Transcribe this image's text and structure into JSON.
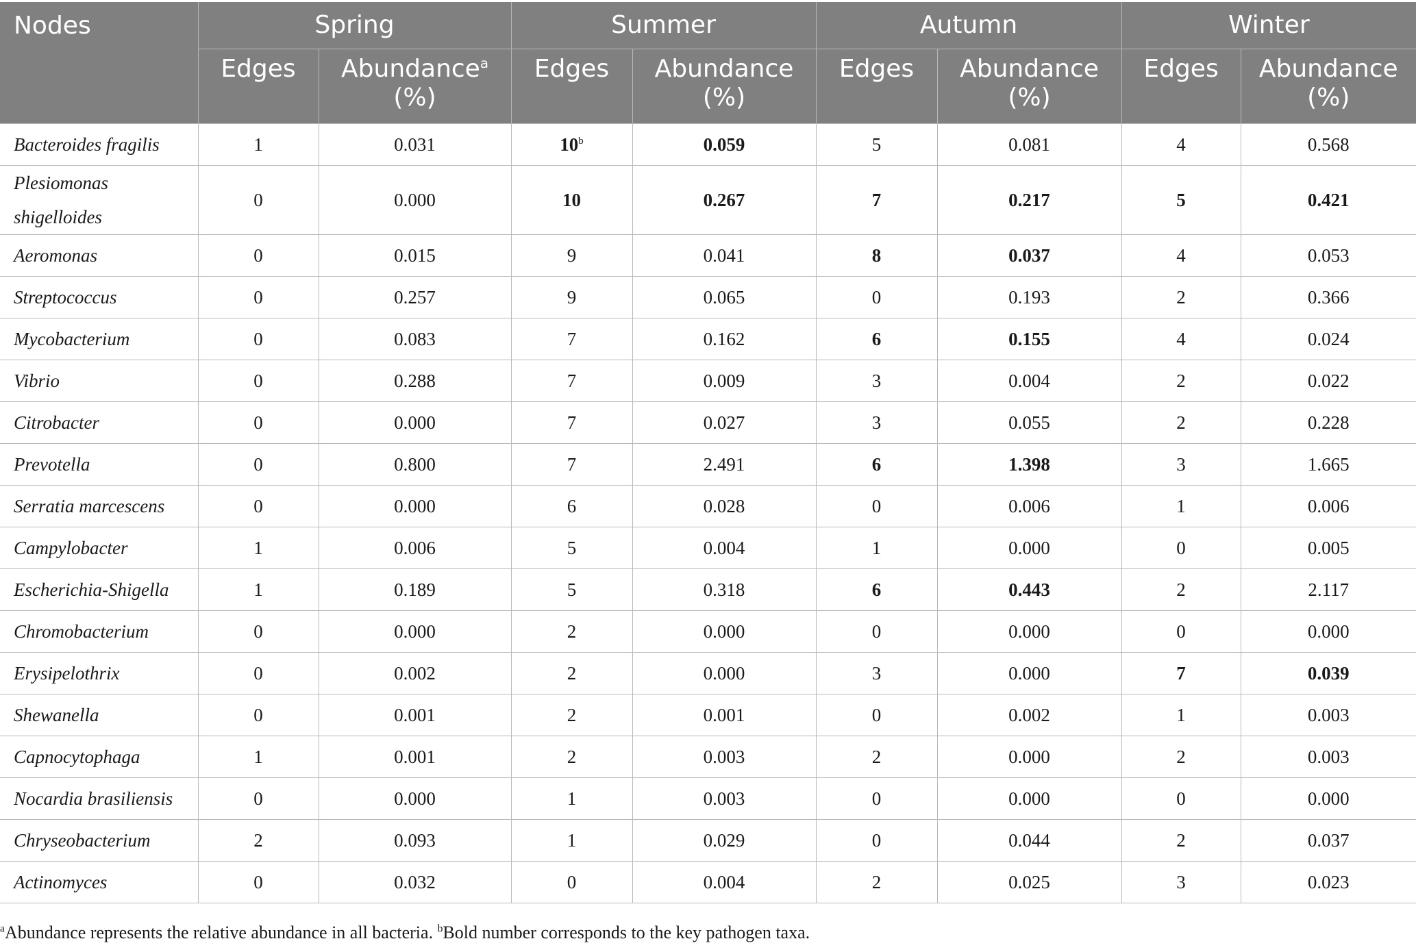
{
  "header": {
    "nodes": "Nodes",
    "seasons": [
      "Spring",
      "Summer",
      "Autumn",
      "Winter"
    ],
    "edges": "Edges",
    "abundance_line1": "Abundance",
    "abundance_sup": "a",
    "abundance_line2": "(%)"
  },
  "rows": [
    {
      "node": "Bacteroides fragilis",
      "spring_e": "1",
      "spring_a": "0.031",
      "summer_e": "10",
      "summer_e_sup": "b",
      "summer_a": "0.059",
      "autumn_e": "5",
      "autumn_a": "0.081",
      "winter_e": "4",
      "winter_a": "0.568"
    },
    {
      "node_l1": "Plesiomonas",
      "node_l2": "shigelloides",
      "spring_e": "0",
      "spring_a": "0.000",
      "summer_e": "10",
      "summer_a": "0.267",
      "autumn_e": "7",
      "autumn_a": "0.217",
      "winter_e": "5",
      "winter_a": "0.421"
    },
    {
      "node": "Aeromonas",
      "spring_e": "0",
      "spring_a": "0.015",
      "summer_e": "9",
      "summer_a": "0.041",
      "autumn_e": "8",
      "autumn_a": "0.037",
      "winter_e": "4",
      "winter_a": "0.053"
    },
    {
      "node": "Streptococcus",
      "spring_e": "0",
      "spring_a": "0.257",
      "summer_e": "9",
      "summer_a": "0.065",
      "autumn_e": "0",
      "autumn_a": "0.193",
      "winter_e": "2",
      "winter_a": "0.366"
    },
    {
      "node": "Mycobacterium",
      "spring_e": "0",
      "spring_a": "0.083",
      "summer_e": "7",
      "summer_a": "0.162",
      "autumn_e": "6",
      "autumn_a": "0.155",
      "winter_e": "4",
      "winter_a": "0.024"
    },
    {
      "node": "Vibrio",
      "spring_e": "0",
      "spring_a": "0.288",
      "summer_e": "7",
      "summer_a": "0.009",
      "autumn_e": "3",
      "autumn_a": "0.004",
      "winter_e": "2",
      "winter_a": "0.022"
    },
    {
      "node": "Citrobacter",
      "spring_e": "0",
      "spring_a": "0.000",
      "summer_e": "7",
      "summer_a": "0.027",
      "autumn_e": "3",
      "autumn_a": "0.055",
      "winter_e": "2",
      "winter_a": "0.228"
    },
    {
      "node": "Prevotella",
      "spring_e": "0",
      "spring_a": "0.800",
      "summer_e": "7",
      "summer_a": "2.491",
      "autumn_e": "6",
      "autumn_a": "1.398",
      "winter_e": "3",
      "winter_a": "1.665"
    },
    {
      "node": "Serratia marcescens",
      "spring_e": "0",
      "spring_a": "0.000",
      "summer_e": "6",
      "summer_a": "0.028",
      "autumn_e": "0",
      "autumn_a": "0.006",
      "winter_e": "1",
      "winter_a": "0.006"
    },
    {
      "node": "Campylobacter",
      "spring_e": "1",
      "spring_a": "0.006",
      "summer_e": "5",
      "summer_a": "0.004",
      "autumn_e": "1",
      "autumn_a": "0.000",
      "winter_e": "0",
      "winter_a": "0.005"
    },
    {
      "node": "Escherichia-Shigella",
      "spring_e": "1",
      "spring_a": "0.189",
      "summer_e": "5",
      "summer_a": "0.318",
      "autumn_e": "6",
      "autumn_a": "0.443",
      "winter_e": "2",
      "winter_a": "2.117"
    },
    {
      "node": "Chromobacterium",
      "spring_e": "0",
      "spring_a": "0.000",
      "summer_e": "2",
      "summer_a": "0.000",
      "autumn_e": "0",
      "autumn_a": "0.000",
      "winter_e": "0",
      "winter_a": "0.000"
    },
    {
      "node": "Erysipelothrix",
      "spring_e": "0",
      "spring_a": "0.002",
      "summer_e": "2",
      "summer_a": "0.000",
      "autumn_e": "3",
      "autumn_a": "0.000",
      "winter_e": "7",
      "winter_a": "0.039"
    },
    {
      "node": "Shewanella",
      "spring_e": "0",
      "spring_a": "0.001",
      "summer_e": "2",
      "summer_a": "0.001",
      "autumn_e": "0",
      "autumn_a": "0.002",
      "winter_e": "1",
      "winter_a": "0.003"
    },
    {
      "node": "Capnocytophaga",
      "spring_e": "1",
      "spring_a": "0.001",
      "summer_e": "2",
      "summer_a": "0.003",
      "autumn_e": "2",
      "autumn_a": "0.000",
      "winter_e": "2",
      "winter_a": "0.003"
    },
    {
      "node": "Nocardia brasiliensis",
      "spring_e": "0",
      "spring_a": "0.000",
      "summer_e": "1",
      "summer_a": "0.003",
      "autumn_e": "0",
      "autumn_a": "0.000",
      "winter_e": "0",
      "winter_a": "0.000"
    },
    {
      "node": "Chryseobacterium",
      "spring_e": "2",
      "spring_a": "0.093",
      "summer_e": "1",
      "summer_a": "0.029",
      "autumn_e": "0",
      "autumn_a": "0.044",
      "winter_e": "2",
      "winter_a": "0.037"
    },
    {
      "node": "Actinomyces",
      "spring_e": "0",
      "spring_a": "0.032",
      "summer_e": "0",
      "summer_a": "0.004",
      "autumn_e": "2",
      "autumn_a": "0.025",
      "winter_e": "3",
      "winter_a": "0.023"
    }
  ],
  "footnote": {
    "a_mark": "a",
    "a_text": "Abundance represents the relative abundance in all bacteria. ",
    "b_mark": "b",
    "b_text": "Bold number corresponds to the key pathogen taxa."
  }
}
